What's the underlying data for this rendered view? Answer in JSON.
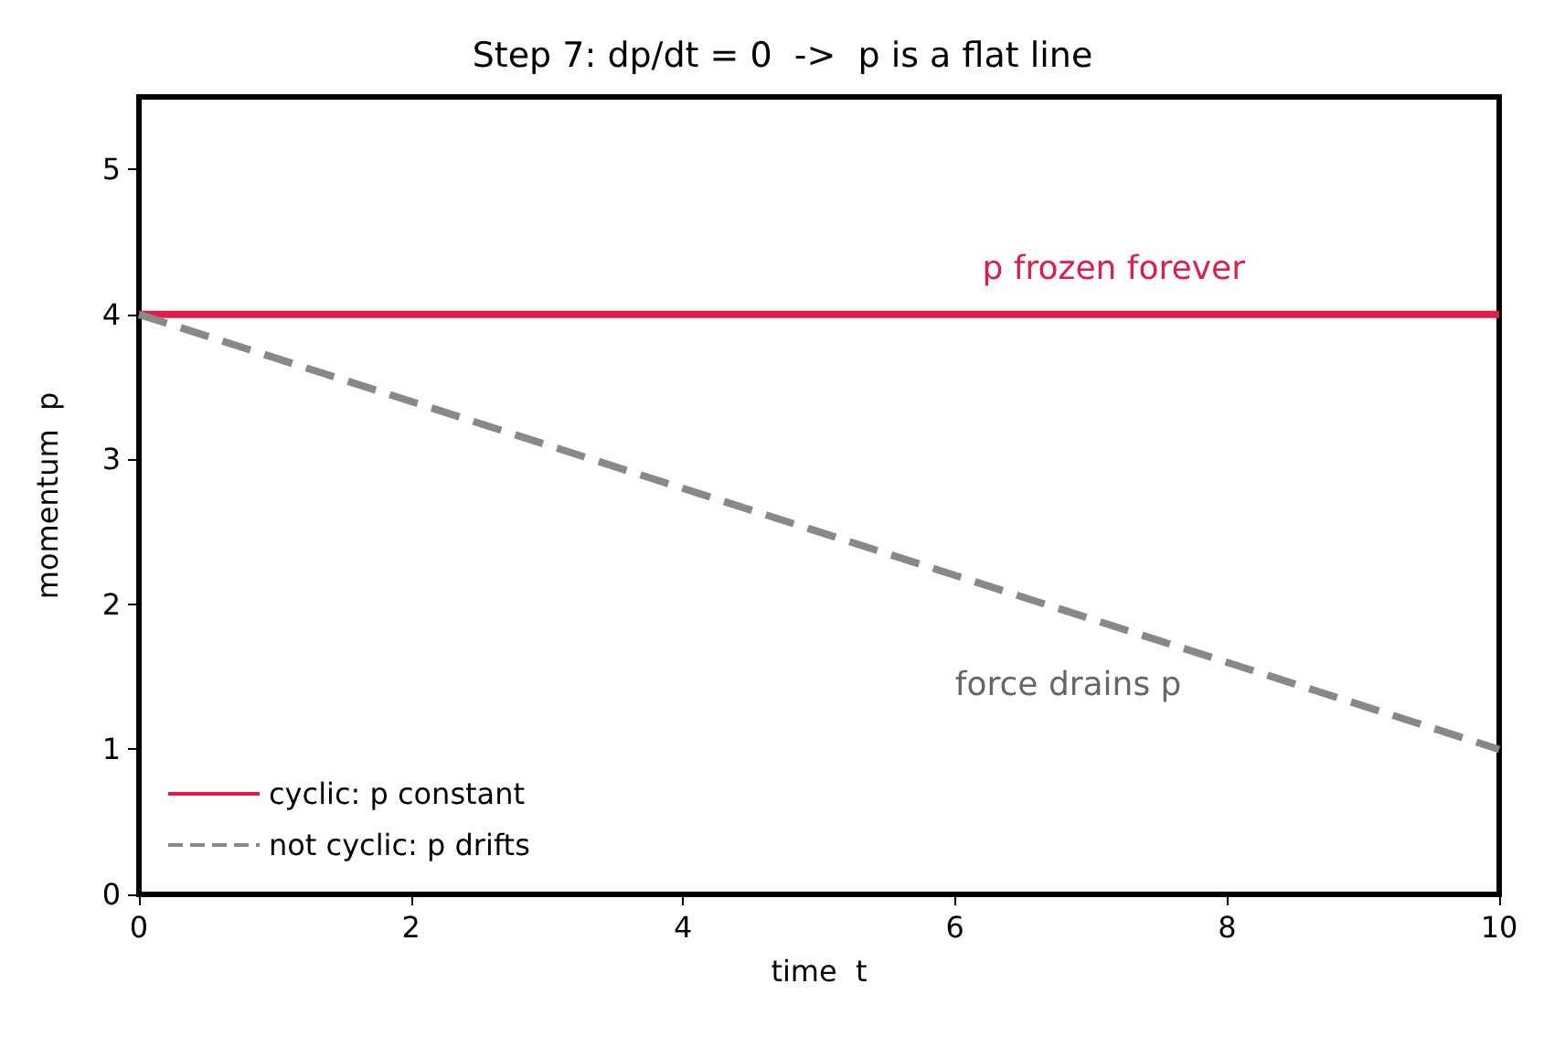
{
  "chart_data": {
    "type": "line",
    "title": "Step 7: dp/dt = 0  ->  p is a flat line",
    "xlabel": "time  t",
    "ylabel": "momentum  p",
    "x": [
      0,
      10
    ],
    "series": [
      {
        "name": "cyclic: p constant",
        "color": "#dc1e4b",
        "values": [
          4,
          4
        ],
        "line_style": "solid"
      },
      {
        "name": "not cyclic: p drifts",
        "color": "#888888",
        "values": [
          4,
          1
        ],
        "line_style": "dashed"
      }
    ],
    "annotations": [
      "p frozen forever",
      "force drains p"
    ],
    "xlim": [
      0,
      10
    ],
    "xticks": [
      0,
      2,
      4,
      6,
      8,
      10
    ],
    "ylim": [
      0,
      5.5
    ],
    "yticks": [
      0,
      1,
      2,
      3,
      4,
      5
    ],
    "grid": false,
    "legend": "bottom left",
    "marker": "none"
  }
}
